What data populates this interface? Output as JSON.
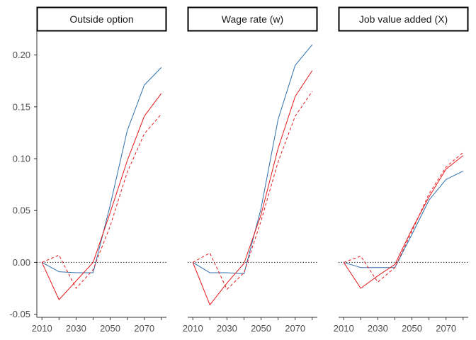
{
  "chart_data": {
    "type": "line",
    "facets": [
      "Outside option",
      "Wage rate (w)",
      "Job value added (X)"
    ],
    "x_ticks": [
      2010,
      2030,
      2050,
      2070
    ],
    "y_ticks": [
      -0.05,
      0.0,
      0.05,
      0.1,
      0.15,
      0.2
    ],
    "y_tick_labels": [
      "-0.05",
      "0.00",
      "0.05",
      "0.10",
      "0.15",
      "0.20"
    ],
    "xlim": [
      2007,
      2083
    ],
    "ylim": [
      -0.053,
      0.223
    ],
    "reference_line_y": 0,
    "grid": false,
    "x": [
      2010,
      2020,
      2030,
      2040,
      2050,
      2060,
      2070,
      2080
    ],
    "colors": {
      "blue": "#2f6fad",
      "red": "#e41a1c"
    },
    "panels": [
      {
        "facet": "Outside option",
        "series": [
          {
            "color": "blue",
            "style": "solid",
            "values": [
              0.0,
              -0.009,
              -0.01,
              -0.01,
              0.055,
              0.127,
              0.171,
              0.188
            ]
          },
          {
            "color": "red",
            "style": "solid",
            "values": [
              0.0,
              -0.036,
              -0.018,
              0.0,
              0.048,
              0.098,
              0.141,
              0.163
            ]
          },
          {
            "color": "red",
            "style": "dashed",
            "values": [
              0.0,
              0.007,
              -0.025,
              -0.007,
              0.035,
              0.087,
              0.124,
              0.143
            ]
          }
        ]
      },
      {
        "facet": "Wage rate (w)",
        "series": [
          {
            "color": "blue",
            "style": "solid",
            "values": [
              0.0,
              -0.01,
              -0.01,
              -0.011,
              0.052,
              0.138,
              0.19,
              0.21
            ]
          },
          {
            "color": "red",
            "style": "solid",
            "values": [
              0.0,
              -0.041,
              -0.02,
              -0.001,
              0.046,
              0.11,
              0.16,
              0.185
            ]
          },
          {
            "color": "red",
            "style": "dashed",
            "values": [
              0.0,
              0.009,
              -0.026,
              -0.01,
              0.04,
              0.097,
              0.141,
              0.165
            ]
          }
        ]
      },
      {
        "facet": "Job value added (X)",
        "series": [
          {
            "color": "blue",
            "style": "solid",
            "values": [
              0.0,
              -0.005,
              -0.005,
              -0.005,
              0.027,
              0.06,
              0.08,
              0.088
            ]
          },
          {
            "color": "red",
            "style": "solid",
            "values": [
              0.0,
              -0.025,
              -0.013,
              -0.002,
              0.032,
              0.063,
              0.09,
              0.103
            ]
          },
          {
            "color": "red",
            "style": "dashed",
            "values": [
              0.0,
              0.006,
              -0.019,
              -0.005,
              0.03,
              0.066,
              0.092,
              0.106
            ]
          }
        ]
      }
    ]
  }
}
